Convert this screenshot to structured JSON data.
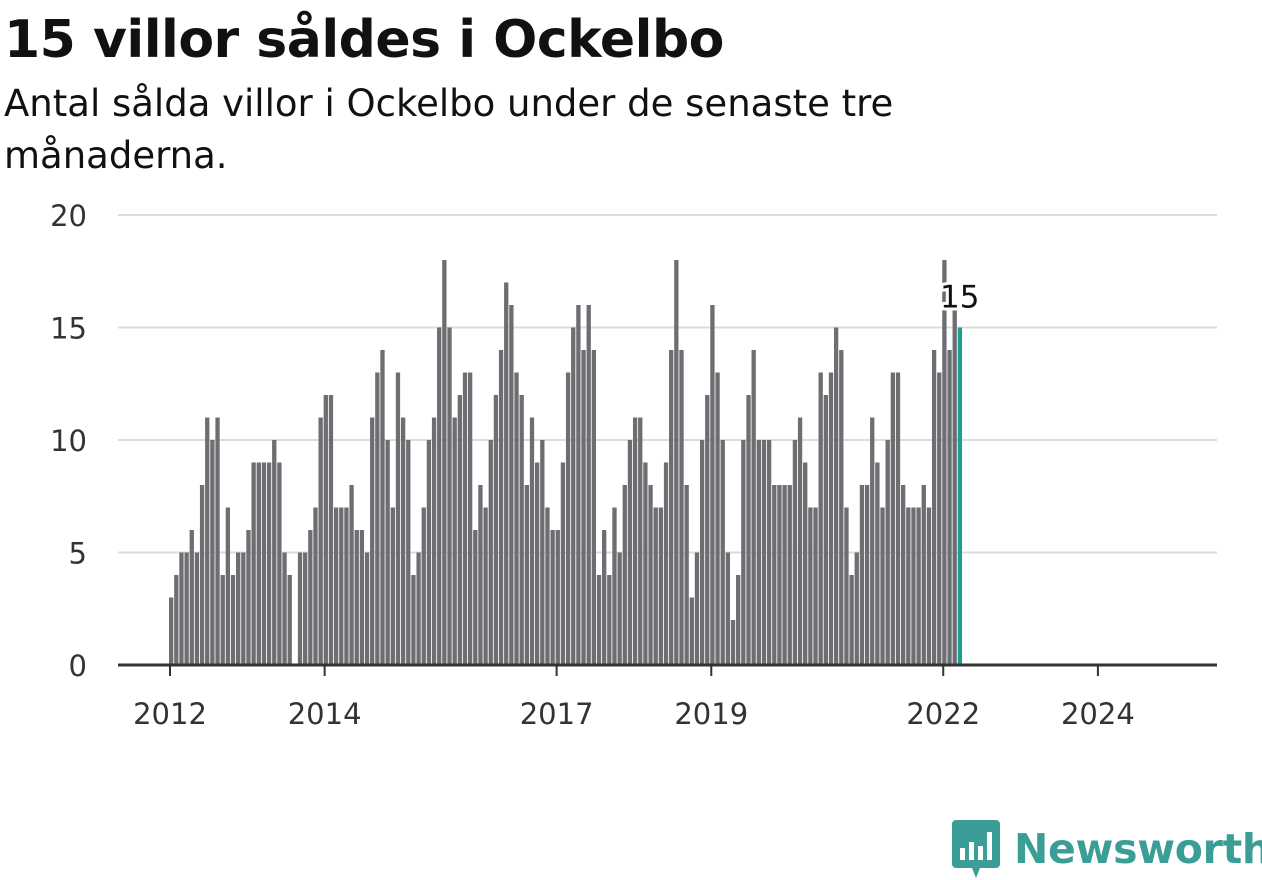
{
  "header": {
    "title": "15 villor såldes i Ockelbo",
    "subtitle": "Antal sålda villor i Ockelbo under de senaste tre månaderna."
  },
  "brand": {
    "name": "Newsworthy",
    "icon": "newsworthy-chart-bubble-icon",
    "color": "#3a9e96"
  },
  "colors": {
    "bar": "#6d6d72",
    "highlight": "#1f9d93",
    "grid": "#dcdcdc",
    "axis": "#333333",
    "text": "#333333"
  },
  "chart_data": {
    "type": "bar",
    "title": "15 villor såldes i Ockelbo",
    "subtitle": "Antal sålda villor i Ockelbo under de senaste tre månaderna.",
    "xlabel": "",
    "ylabel": "",
    "ylim": [
      0,
      20
    ],
    "yticks": [
      0,
      5,
      10,
      15,
      20
    ],
    "grid": true,
    "x_tick_labels": [
      "2012",
      "2014",
      "2017",
      "2019",
      "2022",
      "2024"
    ],
    "x_tick_indices": [
      0,
      30,
      75,
      105,
      150,
      180
    ],
    "start_month": "2012-01",
    "highlight_label": "15",
    "values": [
      3,
      4,
      5,
      5,
      6,
      5,
      8,
      11,
      10,
      11,
      4,
      7,
      4,
      5,
      5,
      6,
      9,
      9,
      9,
      9,
      10,
      9,
      5,
      4,
      0,
      5,
      5,
      6,
      7,
      11,
      12,
      12,
      7,
      7,
      7,
      8,
      6,
      6,
      5,
      11,
      13,
      14,
      10,
      7,
      13,
      11,
      10,
      4,
      5,
      7,
      10,
      11,
      15,
      18,
      15,
      11,
      12,
      13,
      13,
      6,
      8,
      7,
      10,
      12,
      14,
      17,
      16,
      13,
      12,
      8,
      11,
      9,
      10,
      7,
      6,
      6,
      9,
      13,
      15,
      16,
      14,
      16,
      14,
      4,
      6,
      4,
      7,
      5,
      8,
      10,
      11,
      11,
      9,
      8,
      7,
      7,
      9,
      14,
      18,
      14,
      8,
      3,
      5,
      10,
      12,
      16,
      13,
      10,
      5,
      2,
      4,
      10,
      12,
      14,
      10,
      10,
      10,
      8,
      8,
      8,
      8,
      10,
      11,
      9,
      7,
      7,
      13,
      12,
      13,
      15,
      14,
      7,
      4,
      5,
      8,
      8,
      11,
      9,
      7,
      10,
      13,
      13,
      8,
      7,
      7,
      7,
      8,
      7,
      14,
      13,
      18,
      14,
      16,
      15
    ]
  }
}
